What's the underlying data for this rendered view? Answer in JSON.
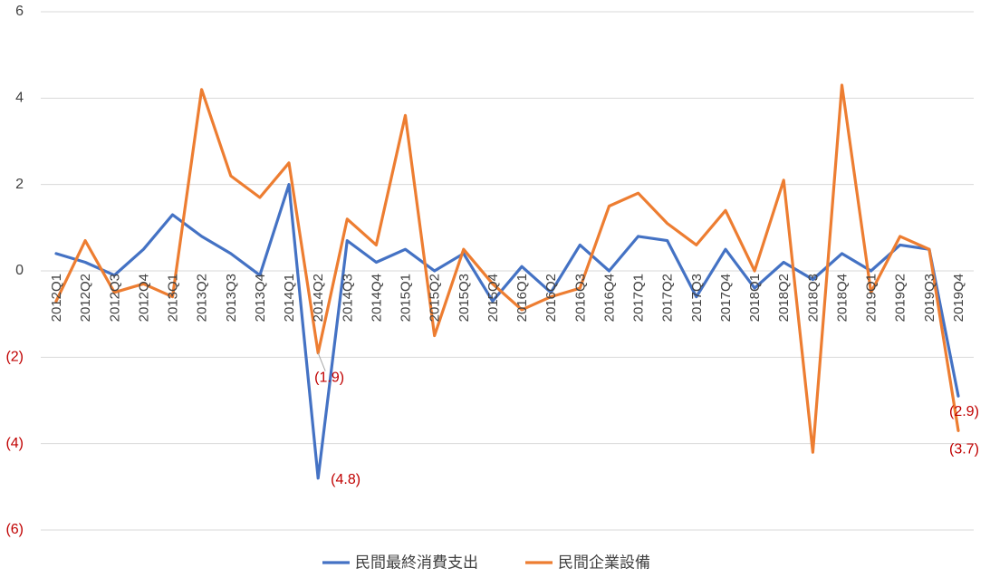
{
  "chart_data": {
    "type": "line",
    "title": "",
    "xlabel": "",
    "ylabel": "",
    "ylim": [
      -6,
      6
    ],
    "yticks": [
      6,
      4,
      2,
      0,
      -2,
      -4,
      -6
    ],
    "ytick_labels": [
      "6",
      "4",
      "2",
      "0",
      "(2)",
      "(4)",
      "(6)"
    ],
    "negative_label_color": "#c00000",
    "positive_label_color": "#404040",
    "grid": true,
    "legend_position": "bottom",
    "categories": [
      "2012Q1",
      "2012Q2",
      "2012Q3",
      "2012Q4",
      "2013Q1",
      "2013Q2",
      "2013Q3",
      "2013Q4",
      "2014Q1",
      "2014Q2",
      "2014Q3",
      "2014Q4",
      "2015Q1",
      "2015Q2",
      "2015Q3",
      "2015Q4",
      "2016Q1",
      "2016Q2",
      "2016Q3",
      "2016Q4",
      "2017Q1",
      "2017Q2",
      "2017Q3",
      "2017Q4",
      "2018Q1",
      "2018Q2",
      "2018Q3",
      "2018Q4",
      "2019Q1",
      "2019Q2",
      "2019Q3",
      "2019Q4"
    ],
    "series": [
      {
        "name": "民間最終消費支出",
        "color": "#4472c4",
        "values": [
          0.4,
          0.2,
          -0.1,
          0.5,
          1.3,
          0.8,
          0.4,
          -0.1,
          2.0,
          -4.8,
          0.7,
          0.2,
          0.5,
          0.0,
          0.4,
          -0.7,
          0.1,
          -0.5,
          0.6,
          0.0,
          0.8,
          0.7,
          -0.6,
          0.5,
          -0.4,
          0.2,
          -0.2,
          0.4,
          0.0,
          0.6,
          0.5,
          -2.9
        ]
      },
      {
        "name": "民間企業設備",
        "color": "#ed7d31",
        "values": [
          -0.7,
          0.7,
          -0.5,
          -0.3,
          -0.6,
          4.2,
          2.2,
          1.7,
          2.5,
          -1.9,
          1.2,
          0.6,
          3.6,
          -1.5,
          0.5,
          -0.3,
          -0.9,
          -0.6,
          -0.4,
          1.5,
          1.8,
          1.1,
          0.6,
          1.4,
          0.0,
          2.1,
          -4.2,
          4.3,
          -0.5,
          0.8,
          0.5,
          -3.7
        ]
      }
    ],
    "data_labels": [
      {
        "series": 1,
        "index": 9,
        "text": "(1.9)"
      },
      {
        "series": 0,
        "index": 9,
        "text": "(4.8)"
      },
      {
        "series": 0,
        "index": 31,
        "text": "(2.9)"
      },
      {
        "series": 1,
        "index": 31,
        "text": "(3.7)"
      }
    ]
  }
}
